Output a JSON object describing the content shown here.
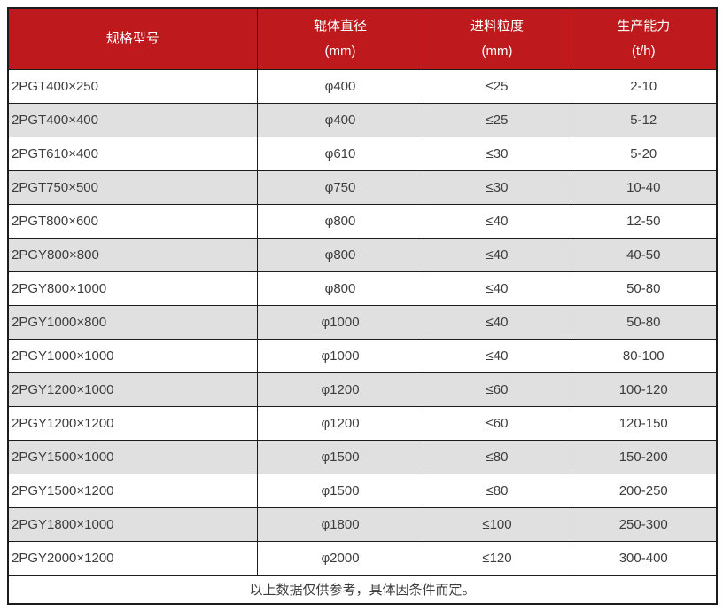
{
  "chart_data": {
    "type": "table",
    "columns": [
      {
        "label": "规格型号",
        "unit": ""
      },
      {
        "label": "辊体直径",
        "unit": "(mm)"
      },
      {
        "label": "进料粒度",
        "unit": "(mm)"
      },
      {
        "label": "生产能力",
        "unit": "(t/h)"
      }
    ],
    "rows": [
      [
        "2PGT400×250",
        "φ400",
        "≤25",
        "2-10"
      ],
      [
        "2PGT400×400",
        "φ400",
        "≤25",
        "5-12"
      ],
      [
        "2PGT610×400",
        "φ610",
        "≤30",
        "5-20"
      ],
      [
        "2PGT750×500",
        "φ750",
        "≤30",
        "10-40"
      ],
      [
        "2PGT800×600",
        "φ800",
        "≤40",
        "12-50"
      ],
      [
        "2PGY800×800",
        "φ800",
        "≤40",
        "40-50"
      ],
      [
        "2PGY800×1000",
        "φ800",
        "≤40",
        "50-80"
      ],
      [
        "2PGY1000×800",
        "φ1000",
        "≤40",
        "50-80"
      ],
      [
        "2PGY1000×1000",
        "φ1000",
        "≤40",
        "80-100"
      ],
      [
        "2PGY1200×1000",
        "φ1200",
        "≤60",
        "100-120"
      ],
      [
        "2PGY1200×1200",
        "φ1200",
        "≤60",
        "120-150"
      ],
      [
        "2PGY1500×1000",
        "φ1500",
        "≤80",
        "150-200"
      ],
      [
        "2PGY1500×1200",
        "φ1500",
        "≤80",
        "200-250"
      ],
      [
        "2PGY1800×1000",
        "φ1800",
        "≤100",
        "250-300"
      ],
      [
        "2PGY2000×1200",
        "φ2000",
        "≤120",
        "300-400"
      ]
    ],
    "footer_note": "以上数据仅供参考，具体因条件而定。",
    "grid": true,
    "legend_position": "none",
    "title": ""
  },
  "colors": {
    "header_bg": "#BE1A1D",
    "header_text": "#FFFFFF",
    "row_bg": "#FFFFFF",
    "row_alt_bg": "#E0E0E0",
    "body_text": "#3D3D3D",
    "border": "#1C1C1C"
  }
}
